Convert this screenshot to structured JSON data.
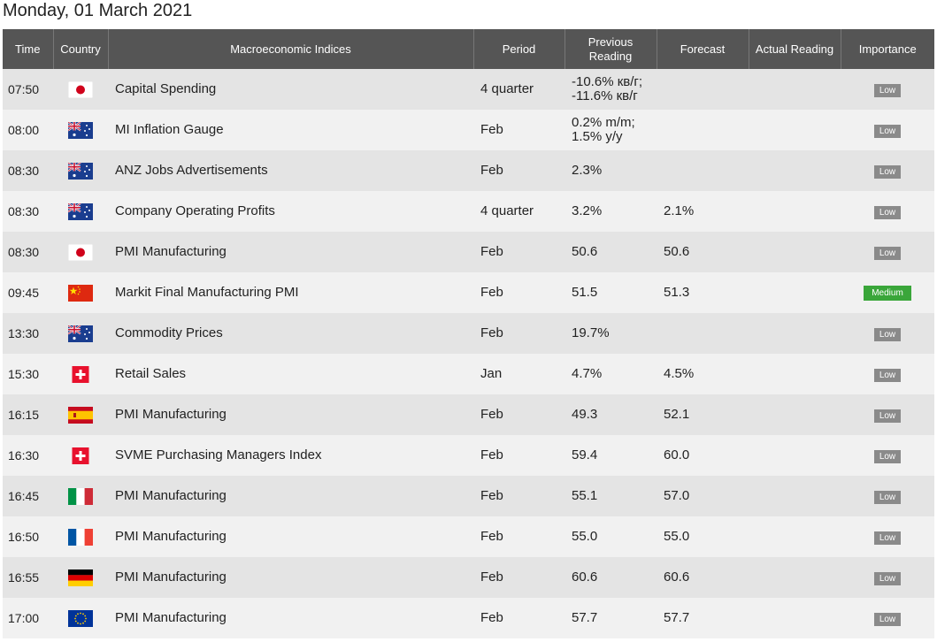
{
  "header": {
    "title": "Monday, 01 March 2021"
  },
  "table": {
    "columns": [
      "Time",
      "Country",
      "Macroeconomic Indices",
      "Period",
      "Previous Reading",
      "Forecast",
      "Actual Reading",
      "Importance"
    ],
    "rows": [
      {
        "time": "07:50",
        "indicator": "Capital Spending",
        "period": "4 quarter",
        "previous": "-10.6% кв/г;\n-11.6% кв/г",
        "importance": "Low"
      },
      {
        "time": "08:00",
        "indicator": "MI Inflation Gauge",
        "period": "Feb",
        "previous": "0.2% m/m;\n1.5% y/y",
        "importance": "Low"
      },
      {
        "time": "08:30",
        "indicator": "ANZ Jobs Advertisements",
        "period": "Feb",
        "previous": "2.3%",
        "importance": "Low"
      },
      {
        "time": "08:30",
        "indicator": "Company Operating Profits",
        "period": "4 quarter",
        "previous": "3.2%",
        "forecast": "2.1%",
        "importance": "Low"
      },
      {
        "time": "08:30",
        "indicator": "PMI Manufacturing",
        "period": "Feb",
        "previous": "50.6",
        "forecast": "50.6",
        "importance": "Low"
      },
      {
        "time": "09:45",
        "indicator": "Markit Final Manufacturing PMI",
        "period": "Feb",
        "previous": "51.5",
        "forecast": "51.3",
        "importance": "Medium"
      },
      {
        "time": "13:30",
        "indicator": "Commodity Prices",
        "period": "Feb",
        "previous": "19.7%",
        "importance": "Low"
      },
      {
        "time": "15:30",
        "indicator": "Retail Sales",
        "period": "Jan",
        "previous": "4.7%",
        "forecast": "4.5%",
        "importance": "Low"
      },
      {
        "time": "16:15",
        "indicator": "PMI Manufacturing",
        "period": "Feb",
        "previous": "49.3",
        "forecast": "52.1",
        "importance": "Low"
      },
      {
        "time": "16:30",
        "indicator": "SVME Purchasing Managers Index",
        "period": "Feb",
        "previous": "59.4",
        "forecast": "60.0",
        "importance": "Low"
      },
      {
        "time": "16:45",
        "indicator": "PMI Manufacturing",
        "period": "Feb",
        "previous": "55.1",
        "forecast": "57.0",
        "importance": "Low"
      },
      {
        "time": "16:50",
        "indicator": "PMI Manufacturing",
        "period": "Feb",
        "previous": "55.0",
        "forecast": "55.0",
        "importance": "Low"
      },
      {
        "time": "16:55",
        "indicator": "PMI Manufacturing",
        "period": "Feb",
        "previous": "60.6",
        "forecast": "60.6",
        "importance": "Low"
      },
      {
        "time": "17:00",
        "indicator": "PMI Manufacturing",
        "period": "Feb",
        "previous": "57.7",
        "forecast": "57.7",
        "importance": "Low"
      }
    ]
  }
}
